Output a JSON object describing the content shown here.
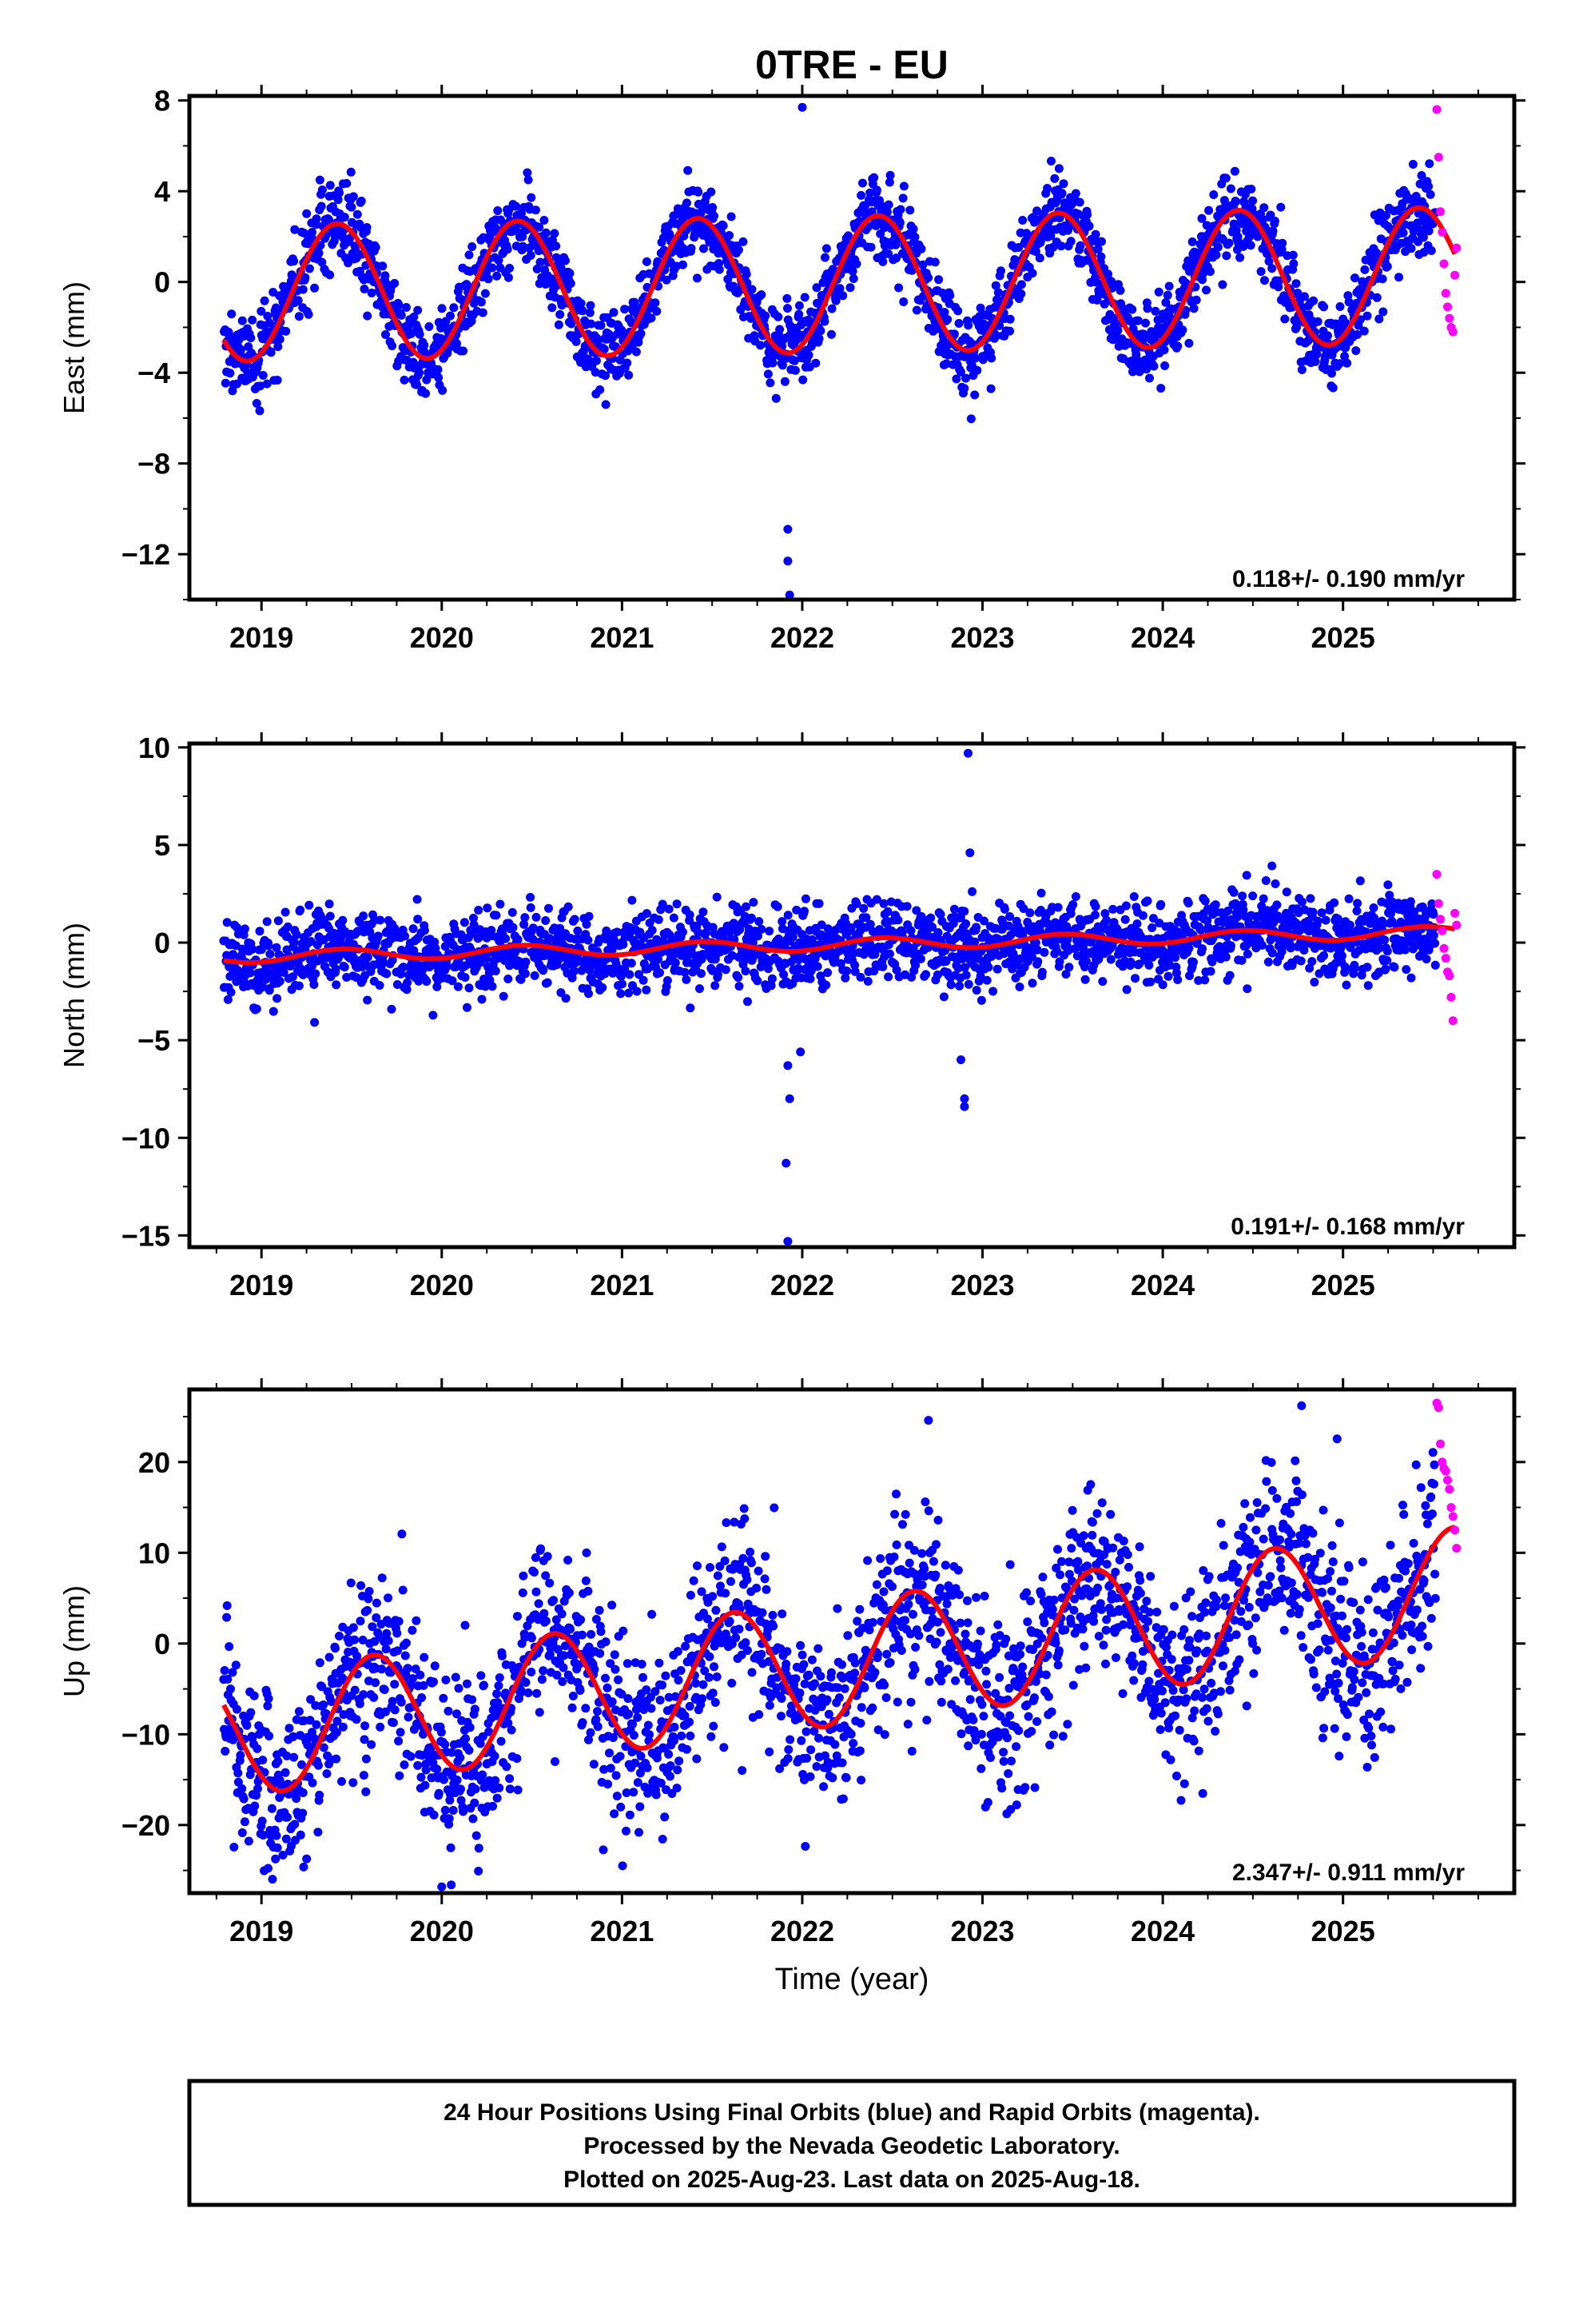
{
  "page": {
    "title": "0TRE - EU"
  },
  "colors": {
    "final_orbits": "#0000ff",
    "rapid_orbits": "#ff00ff",
    "model_fit": "#ff0000",
    "frame": "#000000"
  },
  "chart_data": [
    {
      "type": "scatter",
      "panel": "east",
      "ylabel": "East (mm)",
      "xlabel": "",
      "xlim": [
        2018.6,
        2025.95
      ],
      "ylim": [
        -14.0,
        8.2
      ],
      "x_ticks": [
        2019,
        2020,
        2021,
        2022,
        2023,
        2024,
        2025
      ],
      "y_ticks": [
        8,
        4,
        0,
        -4,
        -8,
        -12
      ],
      "y_tick_labels": [
        "8",
        "4",
        "0",
        "−4",
        "−8",
        "−12"
      ],
      "rate_label": "0.118+/- 0.190 mm/yr",
      "model": {
        "trend_mm_per_yr": 0.118,
        "offset": -0.1,
        "seasonal_amp": 3.0,
        "seasonal_peak": 0.42,
        "semiannual_amp": 0.0,
        "semiannual_peak": 0.0
      },
      "noise_sd": 0.9,
      "outliers": [
        {
          "x": 2021.92,
          "y": -10.9
        },
        {
          "x": 2021.92,
          "y": -12.3
        },
        {
          "x": 2021.93,
          "y": -13.8
        },
        {
          "x": 2022.0,
          "y": 7.7
        }
      ],
      "rapid_points": {
        "x_start": 2025.52,
        "x_end": 2025.63,
        "values": [
          7.6,
          5.5,
          3.1,
          2.2,
          0.8,
          -0.5,
          -1.1,
          -1.6,
          -2.0,
          -2.2,
          0.3,
          1.5
        ]
      }
    },
    {
      "type": "scatter",
      "panel": "north",
      "ylabel": "North (mm)",
      "xlabel": "",
      "xlim": [
        2018.6,
        2025.95
      ],
      "ylim": [
        -15.6,
        10.2
      ],
      "x_ticks": [
        2019,
        2020,
        2021,
        2022,
        2023,
        2024,
        2025
      ],
      "y_ticks": [
        10,
        5,
        0,
        -5,
        -10,
        -15
      ],
      "y_tick_labels": [
        "10",
        "5",
        "0",
        "−5",
        "−10",
        "−15"
      ],
      "rate_label": "0.191+/- 0.168 mm/yr",
      "model": {
        "trend_mm_per_yr": 0.191,
        "offset": -0.1,
        "seasonal_amp": 0.3,
        "seasonal_peak": 0.45,
        "semiannual_amp": 0.0,
        "semiannual_peak": 0.0
      },
      "noise_sd": 1.0,
      "outliers": [
        {
          "x": 2021.92,
          "y": -6.3
        },
        {
          "x": 2021.93,
          "y": -8.0
        },
        {
          "x": 2021.91,
          "y": -11.3
        },
        {
          "x": 2021.92,
          "y": -15.3
        },
        {
          "x": 2021.99,
          "y": -5.6
        },
        {
          "x": 2022.88,
          "y": -6.0
        },
        {
          "x": 2022.9,
          "y": -8.0
        },
        {
          "x": 2022.9,
          "y": -8.4
        },
        {
          "x": 2022.92,
          "y": 9.7
        },
        {
          "x": 2022.93,
          "y": 4.6
        }
      ],
      "rapid_points": {
        "x_start": 2025.52,
        "x_end": 2025.63,
        "values": [
          3.5,
          2.0,
          1.2,
          0.6,
          -0.3,
          -0.8,
          -1.5,
          -1.7,
          -2.8,
          -4.0,
          1.5,
          0.9
        ]
      }
    },
    {
      "type": "scatter",
      "panel": "up",
      "ylabel": "Up (mm)",
      "xlabel": "Time (year)",
      "xlim": [
        2018.6,
        2025.95
      ],
      "ylim": [
        -27.5,
        28.0
      ],
      "x_ticks": [
        2019,
        2020,
        2021,
        2022,
        2023,
        2024,
        2025
      ],
      "y_ticks": [
        20,
        10,
        0,
        -10,
        -20
      ],
      "y_tick_labels": [
        "20",
        "10",
        "0",
        "−10",
        "−20"
      ],
      "rate_label": "2.347+/- 0.911 mm/yr",
      "model": {
        "trend_mm_per_yr": 2.347,
        "offset": -2.1,
        "seasonal_amp": 6.9,
        "seasonal_peak": 0.62,
        "semiannual_amp": 0.0,
        "semiannual_peak": 0.0
      },
      "noise_sd": 5.0,
      "outliers": [
        {
          "x": 2020.0,
          "y": -26.8
        },
        {
          "x": 2022.7,
          "y": 24.6
        },
        {
          "x": 2024.77,
          "y": 26.2
        }
      ],
      "rapid_points": {
        "x_start": 2025.52,
        "x_end": 2025.63,
        "values": [
          26.5,
          26.0,
          22.0,
          20.0,
          19.3,
          19.0,
          18.0,
          17.0,
          15.0,
          14.0,
          12.5,
          10.5
        ]
      }
    }
  ],
  "footer": {
    "line1": "24 Hour Positions Using Final Orbits (blue) and Rapid Orbits (magenta).",
    "line2": "Processed by the Nevada Geodetic Laboratory.",
    "line3": "Plotted on 2025-Aug-23. Last data on 2025-Aug-18."
  }
}
